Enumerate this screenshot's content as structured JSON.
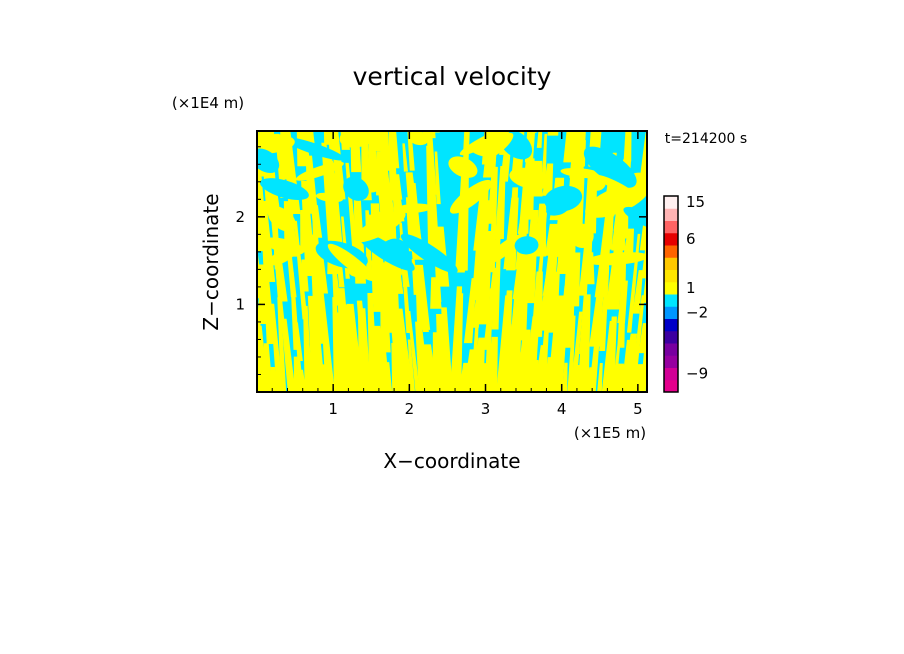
{
  "chart_data": {
    "type": "heatmap",
    "title": "vertical velocity",
    "xlabel": "X−coordinate",
    "ylabel": "Z−coordinate",
    "x_unit_label": "(×1E5 m)",
    "y_unit_label": "(×1E4 m)",
    "time_label": "t=214200 s",
    "xlim": [
      0,
      5.12
    ],
    "ylim": [
      0,
      2.98
    ],
    "x_ticks": [
      {
        "value": 1,
        "label": "1"
      },
      {
        "value": 2,
        "label": "2"
      },
      {
        "value": 3,
        "label": "3"
      },
      {
        "value": 4,
        "label": "4"
      },
      {
        "value": 5,
        "label": "5"
      }
    ],
    "y_ticks": [
      {
        "value": 1,
        "label": "1"
      },
      {
        "value": 2,
        "label": "2"
      }
    ],
    "field_colors": {
      "positive": "#ffff00",
      "negative": "#00e5ff"
    },
    "colorbar": {
      "levels": [
        {
          "color": "#e6008c"
        },
        {
          "color": "#d20096"
        },
        {
          "color": "#9600a0"
        },
        {
          "color": "#7800a0"
        },
        {
          "color": "#3c00a0"
        },
        {
          "color": "#0000c8"
        },
        {
          "color": "#0096ff"
        },
        {
          "color": "#00e5ff"
        },
        {
          "color": "#ffff00"
        },
        {
          "color": "#ffe600"
        },
        {
          "color": "#ffc800"
        },
        {
          "color": "#ff6400"
        },
        {
          "color": "#e60000"
        },
        {
          "color": "#ff6464"
        },
        {
          "color": "#ffb4b4"
        },
        {
          "color": "#fff0f0"
        }
      ],
      "labels": [
        {
          "value": -9,
          "label": "−9"
        },
        {
          "value": -2,
          "label": "−2"
        },
        {
          "value": 1,
          "label": "1"
        },
        {
          "value": 6,
          "label": "6"
        },
        {
          "value": 15,
          "label": "15"
        }
      ]
    }
  }
}
